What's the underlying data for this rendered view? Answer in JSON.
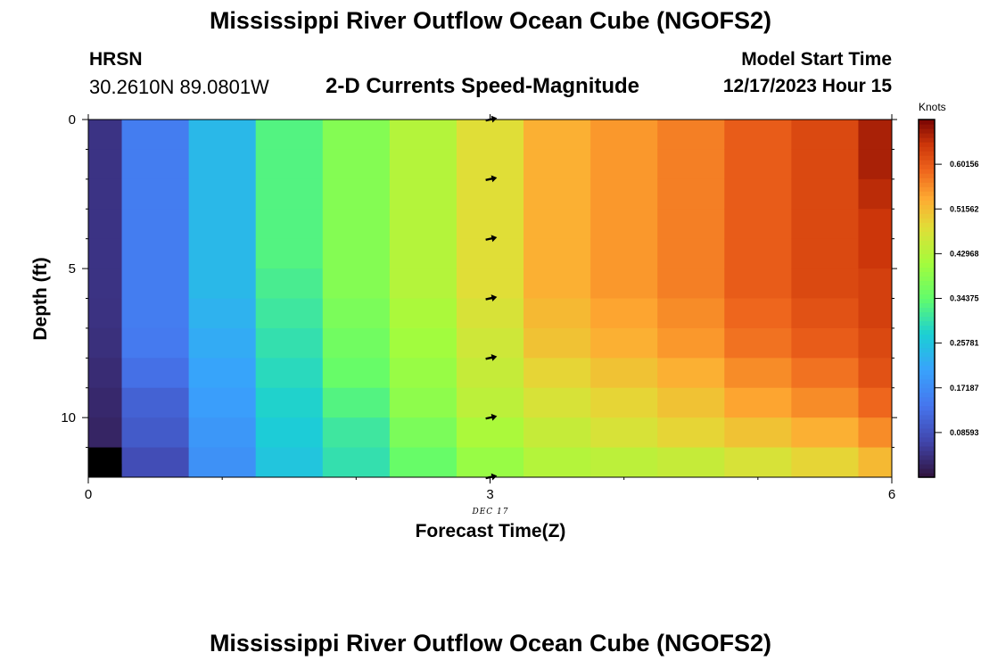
{
  "title": "Mississippi River Outflow Ocean Cube (NGOFS2)",
  "station": "HRSN",
  "coords": "30.2610N  89.0801W",
  "subtitle": "2-D Currents Speed-Magnitude",
  "model_start_label": "Model Start Time",
  "model_start_value": "12/17/2023 Hour 15",
  "bottom_title": "Mississippi River Outflow Ocean Cube (NGOFS2)",
  "chart_data": {
    "type": "heatmap",
    "xlabel": "Forecast Time(Z)",
    "ylabel": "Depth (ft)",
    "date_label": "DEC 17",
    "xlim": [
      0,
      6
    ],
    "ylim": [
      12,
      0
    ],
    "x_ticks": [
      "0",
      "3",
      "6"
    ],
    "y_ticks": [
      "0",
      "5",
      "10"
    ],
    "x_tick_values": [
      0,
      3,
      6
    ],
    "y_tick_values": [
      0,
      5,
      10
    ],
    "colorbar": {
      "unit": "Knots",
      "min": 0.0,
      "max": 0.6875,
      "tick_labels": [
        "0.08593",
        "0.17187",
        "0.25781",
        "0.34375",
        "0.42968",
        "0.51562",
        "0.60156"
      ],
      "tick_values": [
        0.08593,
        0.17187,
        0.25781,
        0.34375,
        0.42968,
        0.51562,
        0.60156
      ]
    },
    "time_edges": [
      0,
      0.25,
      0.75,
      1.25,
      1.75,
      2.25,
      2.75,
      3.25,
      3.75,
      4.25,
      4.75,
      5.25,
      5.75,
      6.0
    ],
    "depth_edges": [
      0,
      1,
      2,
      3,
      4,
      5,
      6,
      7,
      8,
      9,
      10,
      11,
      12
    ],
    "speeds": [
      [
        0.045,
        0.045,
        0.045,
        0.045,
        0.045,
        0.044,
        0.043,
        0.04,
        0.035,
        0.03,
        0.025,
        0.018
      ],
      [
        0.15,
        0.15,
        0.15,
        0.15,
        0.15,
        0.15,
        0.15,
        0.145,
        0.13,
        0.11,
        0.1,
        0.08
      ],
      [
        0.24,
        0.24,
        0.24,
        0.24,
        0.24,
        0.24,
        0.23,
        0.22,
        0.21,
        0.2,
        0.19,
        0.18
      ],
      [
        0.33,
        0.33,
        0.33,
        0.33,
        0.33,
        0.32,
        0.31,
        0.3,
        0.29,
        0.28,
        0.27,
        0.26
      ],
      [
        0.38,
        0.38,
        0.38,
        0.38,
        0.38,
        0.38,
        0.37,
        0.36,
        0.35,
        0.33,
        0.31,
        0.3
      ],
      [
        0.43,
        0.43,
        0.43,
        0.43,
        0.43,
        0.43,
        0.42,
        0.41,
        0.4,
        0.39,
        0.37,
        0.35
      ],
      [
        0.48,
        0.48,
        0.48,
        0.48,
        0.48,
        0.48,
        0.47,
        0.46,
        0.45,
        0.44,
        0.42,
        0.4
      ],
      [
        0.53,
        0.53,
        0.53,
        0.53,
        0.53,
        0.53,
        0.52,
        0.51,
        0.49,
        0.47,
        0.45,
        0.43
      ],
      [
        0.55,
        0.55,
        0.55,
        0.55,
        0.55,
        0.55,
        0.54,
        0.53,
        0.51,
        0.49,
        0.47,
        0.44
      ],
      [
        0.57,
        0.57,
        0.57,
        0.57,
        0.57,
        0.57,
        0.56,
        0.55,
        0.53,
        0.51,
        0.49,
        0.45
      ],
      [
        0.6,
        0.6,
        0.6,
        0.6,
        0.6,
        0.6,
        0.59,
        0.58,
        0.56,
        0.54,
        0.51,
        0.47
      ],
      [
        0.62,
        0.62,
        0.62,
        0.62,
        0.62,
        0.62,
        0.61,
        0.6,
        0.58,
        0.56,
        0.53,
        0.49
      ],
      [
        0.66,
        0.66,
        0.65,
        0.64,
        0.64,
        0.63,
        0.63,
        0.62,
        0.61,
        0.59,
        0.56,
        0.52
      ]
    ],
    "missing_cells": [
      {
        "time_index": 0,
        "depth_index": 11
      }
    ],
    "arrows": {
      "time": 3,
      "depths": [
        0,
        2,
        4,
        6,
        8,
        10,
        12
      ]
    }
  }
}
